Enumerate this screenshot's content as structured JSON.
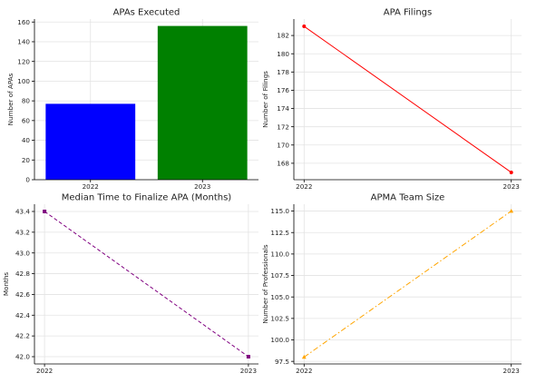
{
  "chart_data": [
    {
      "type": "bar",
      "title": "APAs Executed",
      "xlabel": "",
      "ylabel": "Number of APAs",
      "categories": [
        "2022",
        "2023"
      ],
      "values": [
        77,
        156
      ],
      "bar_colors": [
        "#0000ff",
        "#008000"
      ],
      "ylim": [
        0,
        163
      ],
      "yticks": [
        0,
        20,
        40,
        60,
        80,
        100,
        120,
        140,
        160
      ],
      "ytick_labels": [
        "0",
        "20",
        "40",
        "60",
        "80",
        "100",
        "120",
        "140",
        "160"
      ],
      "grid": true
    },
    {
      "type": "line",
      "title": "APA Filings",
      "xlabel": "",
      "ylabel": "Number of Filings",
      "x": [
        "2022",
        "2023"
      ],
      "values": [
        183,
        167
      ],
      "color": "#ff0000",
      "line_style": "solid",
      "marker": "circle",
      "ylim": [
        166.2,
        183.8
      ],
      "yticks": [
        168,
        170,
        172,
        174,
        176,
        178,
        180,
        182
      ],
      "ytick_labels": [
        "168",
        "170",
        "172",
        "174",
        "176",
        "178",
        "180",
        "182"
      ],
      "grid": true
    },
    {
      "type": "line",
      "title": "Median Time to Finalize APA (Months)",
      "xlabel": "",
      "ylabel": "Months",
      "x": [
        "2022",
        "2023"
      ],
      "values": [
        43.4,
        42.0
      ],
      "color": "#800080",
      "line_style": "dashed",
      "marker": "square",
      "ylim": [
        41.93,
        43.47
      ],
      "yticks": [
        42.0,
        42.2,
        42.4,
        42.6,
        42.8,
        43.0,
        43.2,
        43.4
      ],
      "ytick_labels": [
        "42.0",
        "42.2",
        "42.4",
        "42.6",
        "42.8",
        "43.0",
        "43.2",
        "43.4"
      ],
      "grid": true
    },
    {
      "type": "line",
      "title": "APMA Team Size",
      "xlabel": "",
      "ylabel": "Number of Professionals",
      "x": [
        "2022",
        "2023"
      ],
      "values": [
        98,
        115
      ],
      "color": "#ffa500",
      "line_style": "dashdot",
      "marker": "triangle",
      "ylim": [
        97.2,
        115.8
      ],
      "yticks": [
        97.5,
        100.0,
        102.5,
        105.0,
        107.5,
        110.0,
        112.5,
        115.0
      ],
      "ytick_labels": [
        "97.5",
        "100.0",
        "102.5",
        "105.0",
        "107.5",
        "110.0",
        "112.5",
        "115.0"
      ],
      "grid": true
    }
  ]
}
